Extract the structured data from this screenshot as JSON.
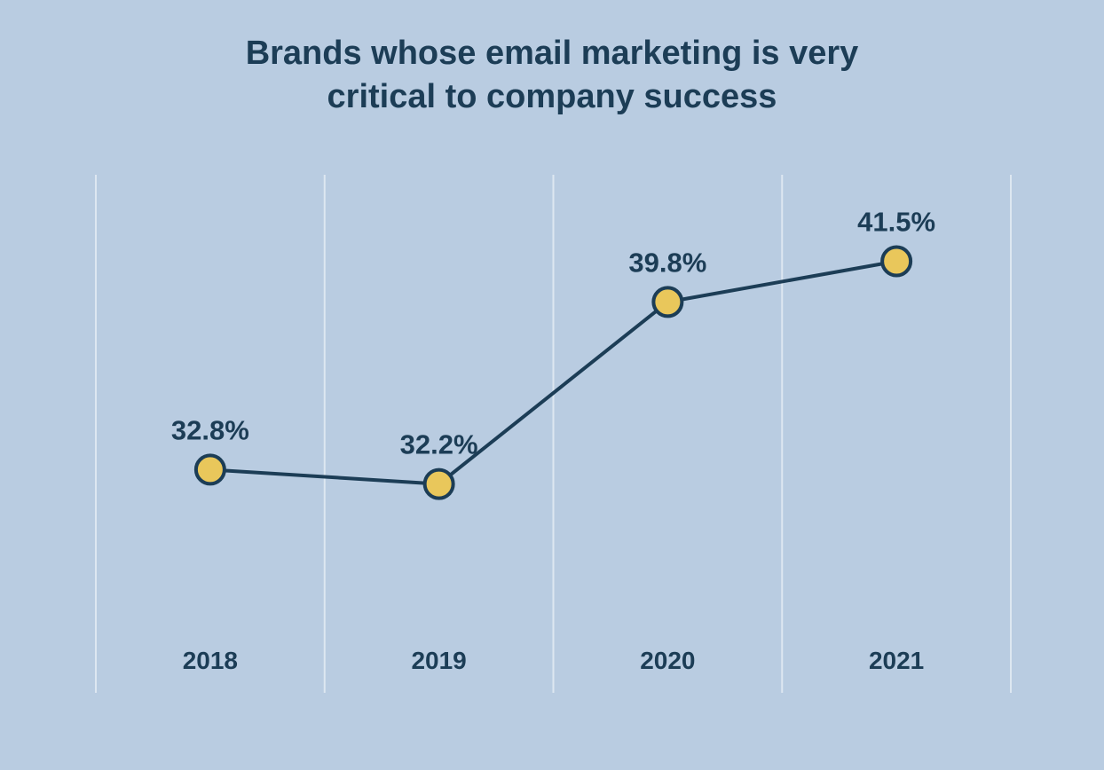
{
  "chart_data": {
    "type": "line",
    "title_lines": [
      "Brands whose email marketing is very",
      "critical to company success"
    ],
    "categories": [
      "2018",
      "2019",
      "2020",
      "2021"
    ],
    "values": [
      32.8,
      32.2,
      39.8,
      41.5
    ],
    "data_labels": [
      "32.8%",
      "32.2%",
      "39.8%",
      "41.5%"
    ],
    "ylim": [
      25,
      45
    ],
    "grid": "vertical",
    "colors": {
      "background": "#b9cce1",
      "line": "#1c3d56",
      "marker_fill": "#e9c75b",
      "gridline": "#dde7f1",
      "text": "#1c3d56"
    }
  }
}
